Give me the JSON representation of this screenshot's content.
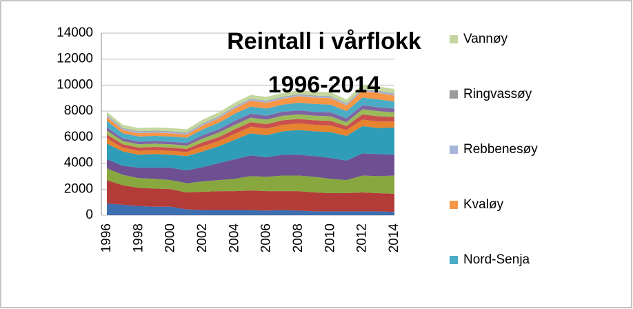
{
  "chart_data": {
    "type": "stacked-area",
    "title_lines": [
      "Reintall i vårflokk",
      "1996-2014"
    ],
    "categories": [
      "1996",
      null,
      "1998",
      null,
      "2000",
      null,
      "2002",
      null,
      "2004",
      null,
      "2006",
      null,
      "2008",
      null,
      "2010",
      null,
      "2012",
      null,
      "2014"
    ],
    "ylim": [
      0,
      14000
    ],
    "yticks": [
      0,
      2000,
      4000,
      6000,
      8000,
      10000,
      12000,
      14000
    ],
    "grid": true,
    "series": [
      {
        "color": "#3d6eb0",
        "values": [
          900,
          800,
          700,
          650,
          650,
          450,
          400,
          400,
          400,
          400,
          350,
          400,
          350,
          300,
          300,
          300,
          300,
          300,
          250
        ]
      },
      {
        "color": "#b33b38",
        "values": [
          1800,
          1500,
          1400,
          1400,
          1350,
          1300,
          1400,
          1450,
          1450,
          1500,
          1500,
          1450,
          1500,
          1450,
          1400,
          1400,
          1450,
          1400,
          1400
        ]
      },
      {
        "color": "#88a83f",
        "values": [
          900,
          800,
          750,
          750,
          700,
          700,
          800,
          850,
          950,
          1100,
          1100,
          1200,
          1200,
          1200,
          1100,
          1000,
          1300,
          1300,
          1400
        ]
      },
      {
        "color": "#6d4f92",
        "values": [
          700,
          700,
          800,
          850,
          950,
          1000,
          1100,
          1300,
          1500,
          1600,
          1500,
          1600,
          1600,
          1600,
          1600,
          1500,
          1700,
          1700,
          1600
        ]
      },
      {
        "color": "#2f9db8",
        "values": [
          1200,
          1100,
          1000,
          1050,
          1000,
          1100,
          1200,
          1300,
          1500,
          1700,
          1700,
          1800,
          1900,
          1900,
          2000,
          1900,
          2100,
          2000,
          2100
        ]
      },
      {
        "color": "#e5832f",
        "values": [
          400,
          300,
          300,
          300,
          300,
          300,
          400,
          400,
          450,
          500,
          500,
          500,
          500,
          500,
          500,
          450,
          500,
          500,
          450
        ]
      },
      {
        "color": "#c9504d",
        "values": [
          300,
          250,
          250,
          250,
          250,
          250,
          300,
          300,
          350,
          350,
          350,
          350,
          350,
          350,
          350,
          300,
          400,
          400,
          350
        ]
      },
      {
        "color": "#9bbb59",
        "values": [
          300,
          250,
          250,
          250,
          250,
          250,
          300,
          350,
          350,
          350,
          350,
          350,
          350,
          350,
          350,
          300,
          400,
          400,
          350
        ]
      },
      {
        "color": "#8064a2",
        "values": [
          250,
          200,
          200,
          200,
          200,
          200,
          250,
          250,
          300,
          300,
          300,
          300,
          300,
          300,
          300,
          300,
          300,
          300,
          300
        ]
      },
      {
        "name": "Nord-Senja",
        "color": "#4bacc6",
        "values": [
          500,
          400,
          400,
          400,
          400,
          400,
          450,
          500,
          550,
          550,
          550,
          550,
          600,
          600,
          600,
          550,
          600,
          600,
          550
        ]
      },
      {
        "name": "Kvaløy",
        "color": "#f79646",
        "values": [
          300,
          250,
          250,
          250,
          250,
          250,
          300,
          350,
          400,
          450,
          450,
          450,
          500,
          500,
          500,
          450,
          500,
          500,
          450
        ]
      },
      {
        "name": "Rebbenesøy",
        "color": "#a5b5da",
        "values": [
          100,
          100,
          100,
          100,
          100,
          100,
          100,
          100,
          100,
          100,
          100,
          100,
          100,
          100,
          100,
          100,
          100,
          100,
          100
        ]
      },
      {
        "name": "Ringvassøy",
        "color": "#9a9a9a",
        "values": [
          50,
          50,
          50,
          50,
          50,
          50,
          50,
          50,
          50,
          50,
          50,
          50,
          50,
          50,
          50,
          50,
          50,
          50,
          50
        ]
      },
      {
        "name": "Vannøy",
        "color": "#c4d7a0",
        "values": [
          250,
          250,
          250,
          250,
          250,
          250,
          300,
          300,
          300,
          300,
          300,
          300,
          300,
          300,
          300,
          300,
          350,
          350,
          350
        ]
      }
    ]
  }
}
